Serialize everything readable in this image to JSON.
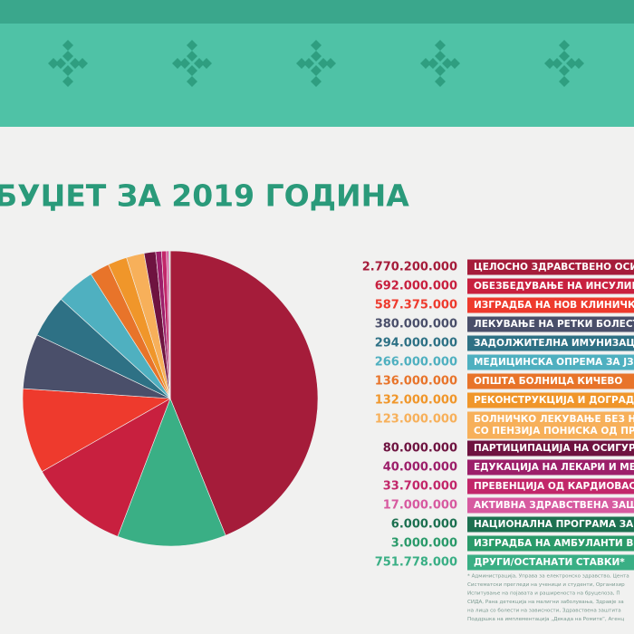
{
  "chart_data": {
    "type": "pie",
    "title": "БУЏЕТ ЗА 2019 ГОДИНА",
    "labels": [
      "ЦЕЛОСНО ЗДРАВСТВЕНО ОСИГУ",
      "ОБЕЗБЕДУВАЊЕ НА ИНСУЛИН",
      "ИЗГРАДБА НА НОВ КЛИНИЧКИ",
      "ЛЕКУВАЊЕ НА РЕТКИ БОЛЕСТИ",
      "ЗАДОЛЖИТЕЛНА ИМУНИЗАЦИ",
      "МЕДИЦИНСКА ОПРЕМА ЗА ЈЗУ",
      "ОПШТА БОЛНИЦА КИЧЕВО",
      "РЕКОНСТРУКЦИЈА И ДОГРАДБА",
      [
        "БОЛНИЧКО ЛЕКУВАЊЕ БЕЗ НАГ",
        "СО ПЕНЗИЈА ПОНИСКА ОД ПРОС"
      ],
      "ПАРТИЦИПАЦИЈА НА ОСИГУРЕН",
      "ЕДУКАЦИЈА НА ЛЕКАРИ И МЕДИ",
      "ПРЕВЕНЦИЈА ОД КАРДИОВАСКУ",
      "АКТИВНА ЗДРАВСТВЕНА ЗАШТИ",
      "НАЦИОНАЛНА ПРОГРАМА ЗА Т",
      "ИЗГРАДБА НА АМБУЛАНТИ ВО",
      "ДРУГИ/ОСТАНАТИ СТАВКИ*"
    ],
    "values": [
      2770200000,
      692000000,
      587375000,
      380000000,
      294000000,
      266000000,
      136000000,
      132000000,
      123000000,
      80000000,
      40000000,
      33700000,
      17000000,
      6000000,
      3000000,
      751778000
    ],
    "value_labels": [
      "2.770.200.000",
      "692.000.000",
      "587.375.000",
      "380.000.000",
      "294.000.000",
      "266.000.000",
      "136.000.000",
      "132.000.000",
      "123.000.000",
      "80.000.000",
      "40.000.000",
      "33.700.000",
      "17.000.000",
      "6.000.000",
      "3.000.000",
      "751.778.000"
    ],
    "colors": [
      "#a51c3a",
      "#c8203f",
      "#ee3a2d",
      "#4a4f6a",
      "#2e7185",
      "#4fb0c0",
      "#e8742a",
      "#f0962a",
      "#f7b05a",
      "#6e1340",
      "#9c1f6a",
      "#c2276a",
      "#d75aa0",
      "#1c7050",
      "#2a9a6a",
      "#3aaf85"
    ],
    "notes": [
      "* Администрација, Управа за електронско здравство, Цента",
      "Систематски прегледи на ученици и студенти, Организир",
      "Испитување на појавата и раширеноста на бруцелоза, П",
      "СИДА, Рана детекција на малигни заболувања, Здравје за",
      "на лица со болести на зависности, Здравствена заштита",
      "Поддршка на имплементација „Декада на Ромите“, Агенц"
    ]
  }
}
